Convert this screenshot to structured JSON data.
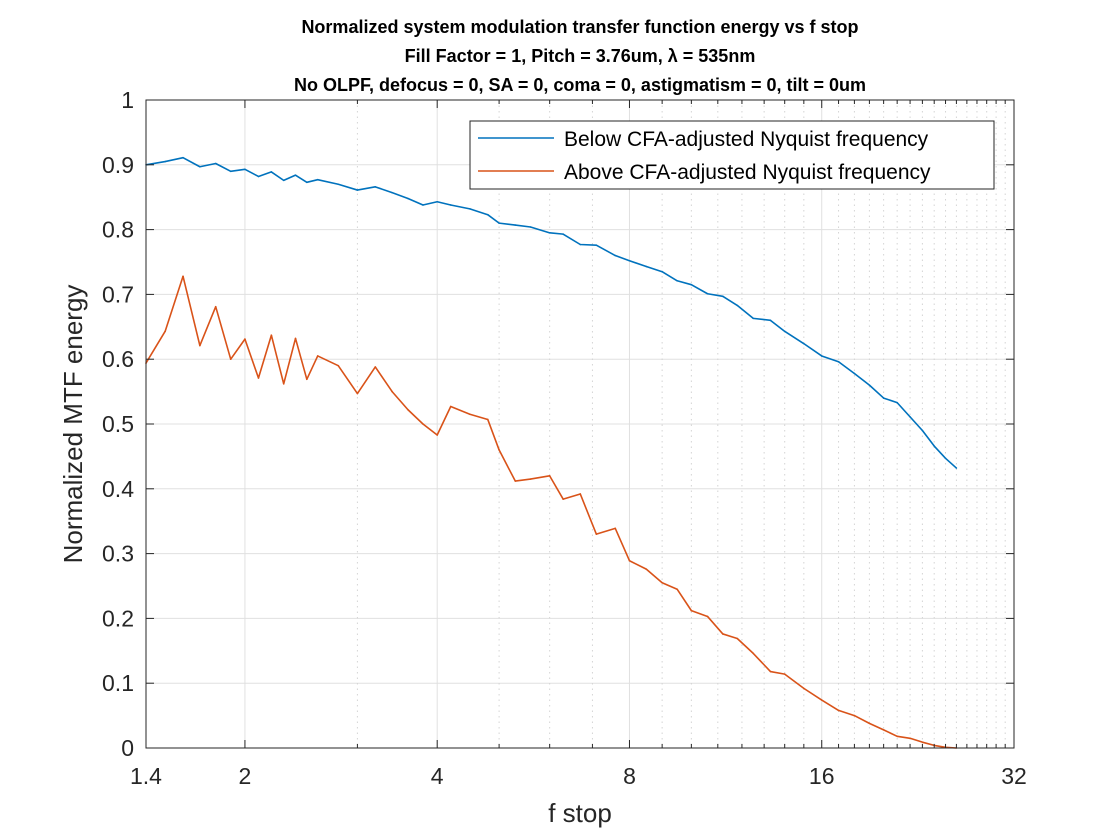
{
  "chart_data": {
    "type": "line",
    "title_lines": [
      "Normalized system modulation transfer function energy vs f stop",
      "Fill Factor = 1, Pitch = 3.76um, λ = 535nm",
      "No OLPF, defocus = 0, SA = 0, coma = 0, astigmatism = 0, tilt = 0um"
    ],
    "xlabel": "f stop",
    "ylabel": "Normalized MTF energy",
    "xscale": "log2",
    "xlim": [
      1.4,
      32
    ],
    "ylim": [
      0,
      1
    ],
    "x_ticks": [
      1.4,
      2,
      4,
      8,
      16,
      32
    ],
    "x_tick_labels": [
      "1.4",
      "2",
      "4",
      "8",
      "16",
      "32"
    ],
    "y_ticks": [
      0,
      0.1,
      0.2,
      0.3,
      0.4,
      0.5,
      0.6,
      0.7,
      0.8,
      0.9,
      1
    ],
    "y_tick_labels": [
      "0",
      "0.1",
      "0.2",
      "0.3",
      "0.4",
      "0.5",
      "0.6",
      "0.7",
      "0.8",
      "0.9",
      "1"
    ],
    "minor_x_ticks": [
      3,
      5,
      6,
      7,
      9,
      10,
      11,
      12,
      13,
      14,
      15,
      17,
      18,
      19,
      20,
      21,
      22,
      23,
      24,
      25,
      26,
      27,
      28,
      29,
      30,
      31
    ],
    "grid": true,
    "legend_position": "top-right",
    "series": [
      {
        "name": "Below CFA-adjusted Nyquist frequency",
        "color": "#0072BD",
        "x": [
          1.4,
          1.5,
          1.6,
          1.7,
          1.8,
          1.9,
          2.0,
          2.1,
          2.2,
          2.3,
          2.4,
          2.5,
          2.6,
          2.8,
          3.0,
          3.2,
          3.4,
          3.6,
          3.8,
          4.0,
          4.2,
          4.5,
          4.8,
          5.0,
          5.3,
          5.6,
          6.0,
          6.3,
          6.7,
          7.1,
          7.6,
          8.0,
          8.5,
          9.0,
          9.5,
          10.0,
          10.6,
          11.2,
          11.8,
          12.5,
          13.3,
          14.0,
          15.0,
          16.0,
          17.0,
          18.0,
          19.0,
          20.0,
          21.0,
          22.0,
          23.0,
          24.0,
          25.0,
          26.0
        ],
        "y": [
          0.9,
          0.905,
          0.911,
          0.897,
          0.902,
          0.89,
          0.893,
          0.882,
          0.889,
          0.876,
          0.884,
          0.873,
          0.877,
          0.87,
          0.861,
          0.866,
          0.857,
          0.848,
          0.838,
          0.843,
          0.838,
          0.832,
          0.823,
          0.81,
          0.807,
          0.804,
          0.795,
          0.793,
          0.777,
          0.776,
          0.76,
          0.752,
          0.743,
          0.735,
          0.721,
          0.715,
          0.701,
          0.697,
          0.683,
          0.663,
          0.66,
          0.643,
          0.624,
          0.605,
          0.596,
          0.578,
          0.56,
          0.54,
          0.533,
          0.511,
          0.49,
          0.466,
          0.447,
          0.432
        ]
      },
      {
        "name": "Above CFA-adjusted Nyquist frequency",
        "color": "#D95319",
        "x": [
          1.4,
          1.5,
          1.6,
          1.7,
          1.8,
          1.9,
          2.0,
          2.1,
          2.2,
          2.3,
          2.4,
          2.5,
          2.6,
          2.8,
          3.0,
          3.2,
          3.4,
          3.6,
          3.8,
          4.0,
          4.2,
          4.5,
          4.8,
          5.0,
          5.3,
          5.6,
          6.0,
          6.3,
          6.7,
          7.1,
          7.6,
          8.0,
          8.5,
          9.0,
          9.5,
          10.0,
          10.6,
          11.2,
          11.8,
          12.5,
          13.3,
          14.0,
          15.0,
          16.0,
          17.0,
          18.0,
          19.0,
          20.0,
          21.0,
          22.0,
          23.0,
          24.0,
          25.0,
          26.0
        ],
        "y": [
          0.594,
          0.643,
          0.728,
          0.621,
          0.681,
          0.6,
          0.631,
          0.571,
          0.637,
          0.562,
          0.632,
          0.569,
          0.605,
          0.59,
          0.547,
          0.588,
          0.55,
          0.522,
          0.5,
          0.483,
          0.527,
          0.515,
          0.507,
          0.46,
          0.412,
          0.415,
          0.42,
          0.384,
          0.392,
          0.33,
          0.339,
          0.289,
          0.276,
          0.255,
          0.245,
          0.212,
          0.203,
          0.176,
          0.169,
          0.146,
          0.118,
          0.114,
          0.092,
          0.074,
          0.058,
          0.05,
          0.038,
          0.028,
          0.018,
          0.015,
          0.009,
          0.004,
          0.001,
          0.0
        ]
      }
    ]
  }
}
